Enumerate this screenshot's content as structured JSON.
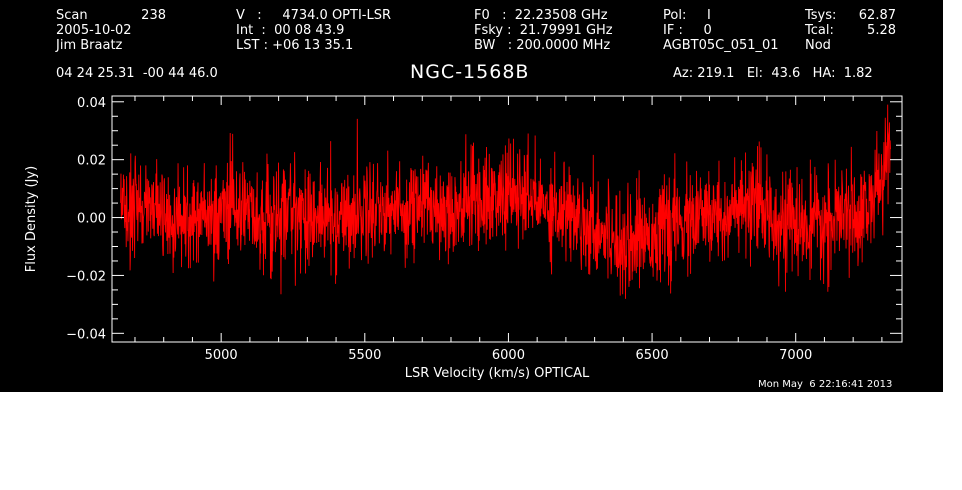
{
  "header": {
    "scan_label": "Scan",
    "scan_number": "238",
    "date": "2005-10-02",
    "observer": "Jim Braatz",
    "coordinates": "04 24 25.31  -00 44 46.0",
    "velocity_line": "V   :     4734.0 OPTI-LSR",
    "int_line": "Int  :  00 08 43.9",
    "lst_line": "LST : +06 13 35.1",
    "f0_line": "F0   :  22.23508 GHz",
    "fsky_line": "Fsky :  21.79991 GHz",
    "bw_line": "BW   : 200.0000 MHz",
    "pol_line": "Pol:     I",
    "if_line": "IF :     0",
    "project_id": "AGBT05C_051_01",
    "tsys_label": "Tsys:",
    "tsys_value": "62.87",
    "tcal_label": "Tcal:",
    "tcal_value": "5.28",
    "mode": "Nod",
    "source_name": "NGC-1568B",
    "az_el_ha": "Az: 219.1   El:  43.6   HA:  1.82",
    "timestamp": "Mon May  6 22:16:41 2013"
  },
  "colors": {
    "background": "#000000",
    "axes": "#ffffff",
    "spectrum": "#ff0000"
  },
  "chart_data": {
    "type": "line",
    "title": "NGC-1568B",
    "xlabel": "LSR Velocity (km/s) OPTICAL",
    "ylabel": "Flux Density (Jy)",
    "xlim": [
      4620,
      7370
    ],
    "ylim": [
      -0.043,
      0.042
    ],
    "x_ticks": [
      5000,
      5500,
      6000,
      6500,
      7000
    ],
    "x_tick_labels": [
      "5000",
      "5500",
      "6000",
      "6500",
      "7000"
    ],
    "y_ticks": [
      -0.04,
      -0.02,
      0.0,
      0.02,
      0.04
    ],
    "y_tick_labels": [
      "−0.04",
      "−0.02",
      "0.00",
      "0.02",
      "0.04"
    ],
    "grid": false,
    "series": [
      {
        "color": "#ff0000",
        "x_range": [
          4650,
          7330
        ],
        "x": [
          4650,
          4700,
          4750,
          4800,
          4850,
          4900,
          4950,
          5000,
          5050,
          5100,
          5150,
          5200,
          5250,
          5300,
          5350,
          5400,
          5450,
          5500,
          5550,
          5600,
          5650,
          5700,
          5750,
          5800,
          5850,
          5900,
          5950,
          6000,
          6050,
          6100,
          6150,
          6200,
          6250,
          6300,
          6350,
          6400,
          6450,
          6500,
          6550,
          6600,
          6650,
          6700,
          6750,
          6800,
          6850,
          6900,
          6950,
          7000,
          7050,
          7100,
          7150,
          7200,
          7250,
          7280,
          7300,
          7330
        ],
        "baseline": [
          -0.001,
          0.005,
          0.003,
          0.001,
          0.0,
          -0.001,
          0.0,
          0.001,
          0.002,
          0.001,
          0.0,
          0.002,
          0.003,
          0.001,
          0.0,
          -0.001,
          0.001,
          0.003,
          0.004,
          0.002,
          0.003,
          0.005,
          0.004,
          0.003,
          0.005,
          0.007,
          0.006,
          0.008,
          0.007,
          0.005,
          0.004,
          0.002,
          0.0,
          -0.003,
          -0.006,
          -0.008,
          -0.007,
          -0.005,
          -0.004,
          -0.003,
          -0.001,
          0.0,
          0.001,
          0.002,
          0.003,
          0.002,
          0.0,
          -0.003,
          -0.004,
          -0.003,
          -0.001,
          0.001,
          0.004,
          0.008,
          0.015,
          0.022
        ],
        "noise_rms": 0.0085
      }
    ]
  }
}
